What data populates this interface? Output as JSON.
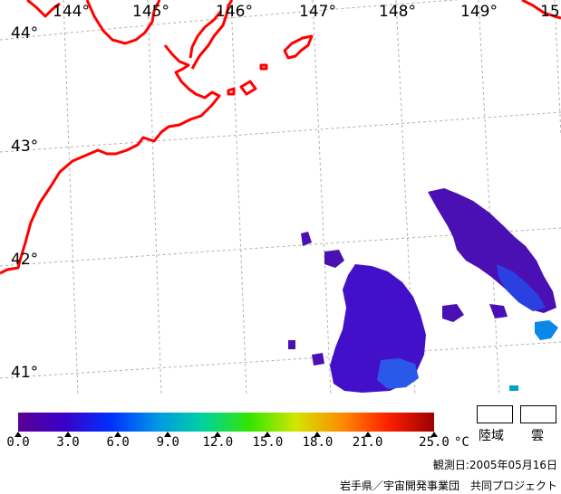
{
  "map": {
    "lon_labels": [
      "144°",
      "145°",
      "146°",
      "147°",
      "148°",
      "149°",
      "15"
    ],
    "lat_labels": [
      "44°",
      "43°",
      "42°",
      "41°"
    ],
    "coast_color": "#ff0000",
    "grid_color": "#b0b0b0"
  },
  "colorbar": {
    "ticks": [
      "0.0",
      "3.0",
      "6.0",
      "9.0",
      "12.0",
      "15.0",
      "18.0",
      "21.0",
      "25.0"
    ],
    "unit": "°C",
    "min": 0,
    "max": 25,
    "colors": [
      "#5a0096",
      "#3a00c8",
      "#0030ff",
      "#0096e6",
      "#00d2a0",
      "#32e600",
      "#d2e600",
      "#ff8c00",
      "#ff2000",
      "#9b0000"
    ]
  },
  "legend": {
    "land_label": "陸域",
    "cloud_label": "雲"
  },
  "footer": {
    "observation": "観測日:2005年05月16日",
    "credit": "岩手県／宇宙開発事業団　共同プロジェクト"
  }
}
